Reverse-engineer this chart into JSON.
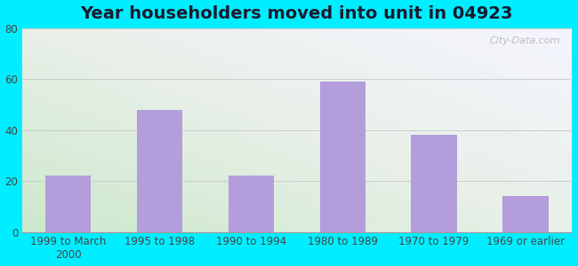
{
  "title": "Year householders moved into unit in 04923",
  "categories": [
    "1999 to March\n2000",
    "1995 to 1998",
    "1990 to 1994",
    "1980 to 1989",
    "1970 to 1979",
    "1969 or earlier"
  ],
  "values": [
    22,
    48,
    22,
    59,
    38,
    14
  ],
  "bar_color": "#b39ddb",
  "ylim": [
    0,
    80
  ],
  "yticks": [
    0,
    20,
    40,
    60,
    80
  ],
  "outer_bg": "#00eeff",
  "plot_bg_bottom_left": "#cce8cc",
  "plot_bg_top_right": "#f5f5ff",
  "watermark": "City-Data.com",
  "title_fontsize": 14,
  "tick_fontsize": 8.5,
  "title_color": "#1a1a2e"
}
